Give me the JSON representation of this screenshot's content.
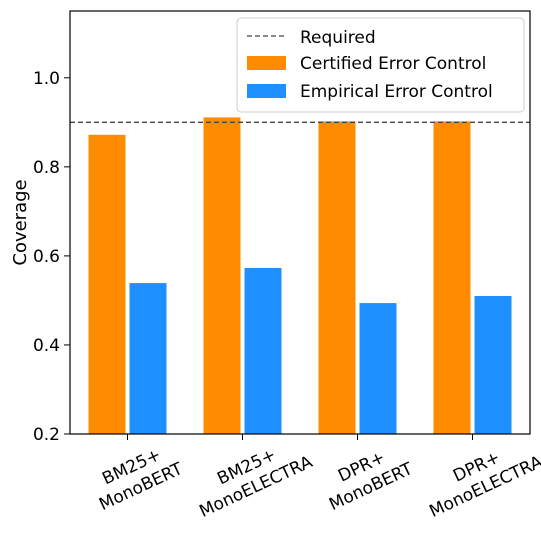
{
  "chart_data": {
    "type": "bar",
    "title": "",
    "xlabel": "",
    "ylabel": "Coverage",
    "ylim": [
      0.2,
      1.15
    ],
    "yticks": [
      "0.2",
      "0.4",
      "0.6",
      "0.8",
      "1.0"
    ],
    "categories": [
      [
        "BM25+",
        "MonoBERT"
      ],
      [
        "BM25+",
        "MonoELECTRA"
      ],
      [
        "DPR+",
        "MonoBERT"
      ],
      [
        "DPR+",
        "MonoELECTRA"
      ]
    ],
    "series": [
      {
        "name": "Certified Error Control",
        "color": "#ff8c00",
        "values": [
          0.872,
          0.911,
          0.902,
          0.902
        ]
      },
      {
        "name": "Empirical Error Control",
        "color": "#1e90ff",
        "values": [
          0.539,
          0.573,
          0.494,
          0.51
        ]
      }
    ],
    "reference_line": {
      "name": "Required",
      "value": 0.9,
      "style": "dashed",
      "color": "#444444"
    },
    "grid": false,
    "legend_position": "top-right"
  }
}
